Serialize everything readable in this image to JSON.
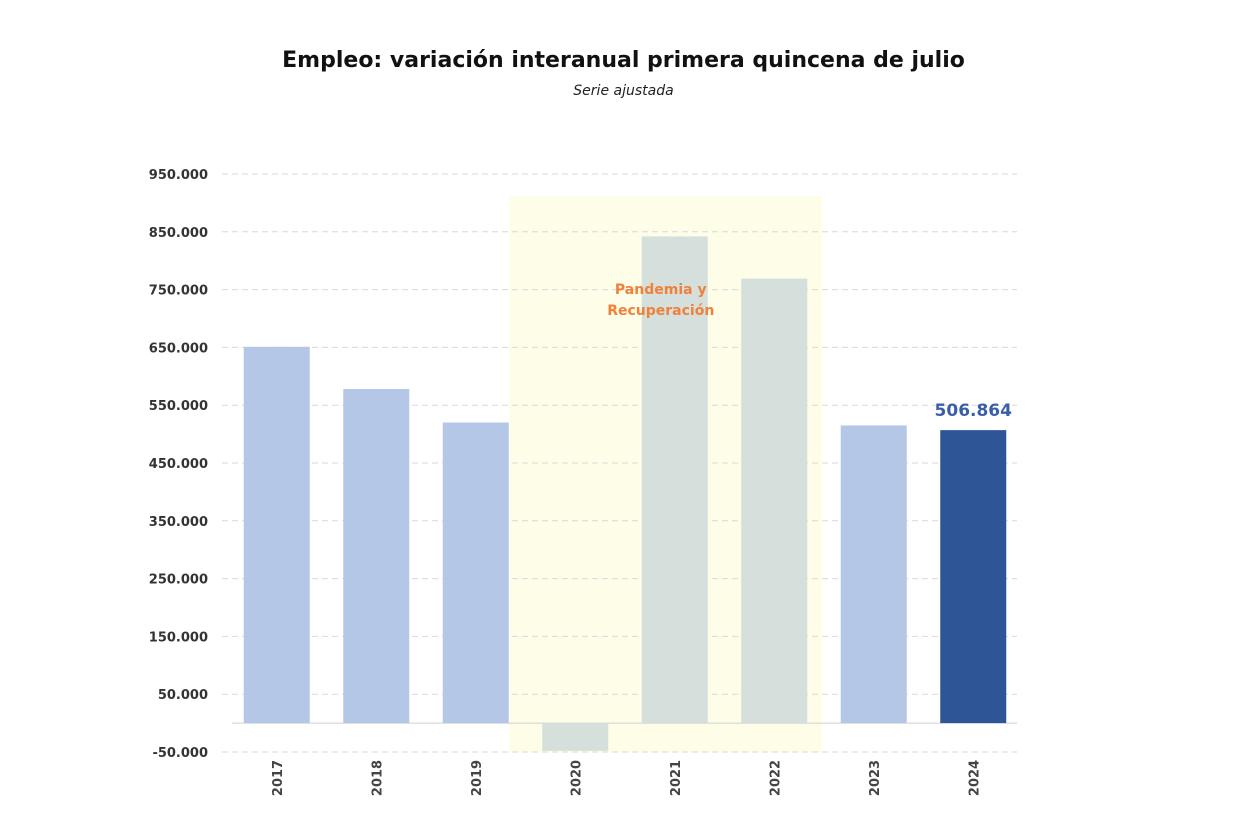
{
  "chart_data": {
    "type": "bar",
    "title": "Empleo: variación interanual primera quincena de julio",
    "subtitle": "Serie ajustada",
    "xlabel": "",
    "ylabel": "",
    "ylim": [
      -50000,
      950000
    ],
    "yticks": [
      -50000,
      50000,
      150000,
      250000,
      350000,
      450000,
      550000,
      650000,
      750000,
      850000,
      950000
    ],
    "ytick_labels": [
      "-50.000",
      "50.000",
      "150.000",
      "250.000",
      "350.000",
      "450.000",
      "550.000",
      "650.000",
      "750.000",
      "850.000",
      "950.000"
    ],
    "categories": [
      "2017",
      "2018",
      "2019",
      "2020",
      "2021",
      "2022",
      "2023",
      "2024"
    ],
    "values": [
      651000,
      578000,
      520000,
      -48000,
      842000,
      769000,
      515000,
      506864
    ],
    "bar_colors": [
      "#b4c7e7",
      "#b4c7e7",
      "#b4c7e7",
      "#d5dfdb",
      "#d5dfdb",
      "#d5dfdb",
      "#b4c7e7",
      "#2e5596"
    ],
    "grid": true,
    "highlight_region": {
      "from_category": "2020",
      "to_category": "2022",
      "label": "Pandemia y Recuperación",
      "label_lines": [
        "Pandemia y",
        "Recuperación"
      ],
      "fill_color": "#fdfde8",
      "label_color": "#f0813a"
    },
    "data_labels": [
      {
        "category": "2024",
        "text": "506.864",
        "color": "#3a5ea8"
      }
    ]
  }
}
